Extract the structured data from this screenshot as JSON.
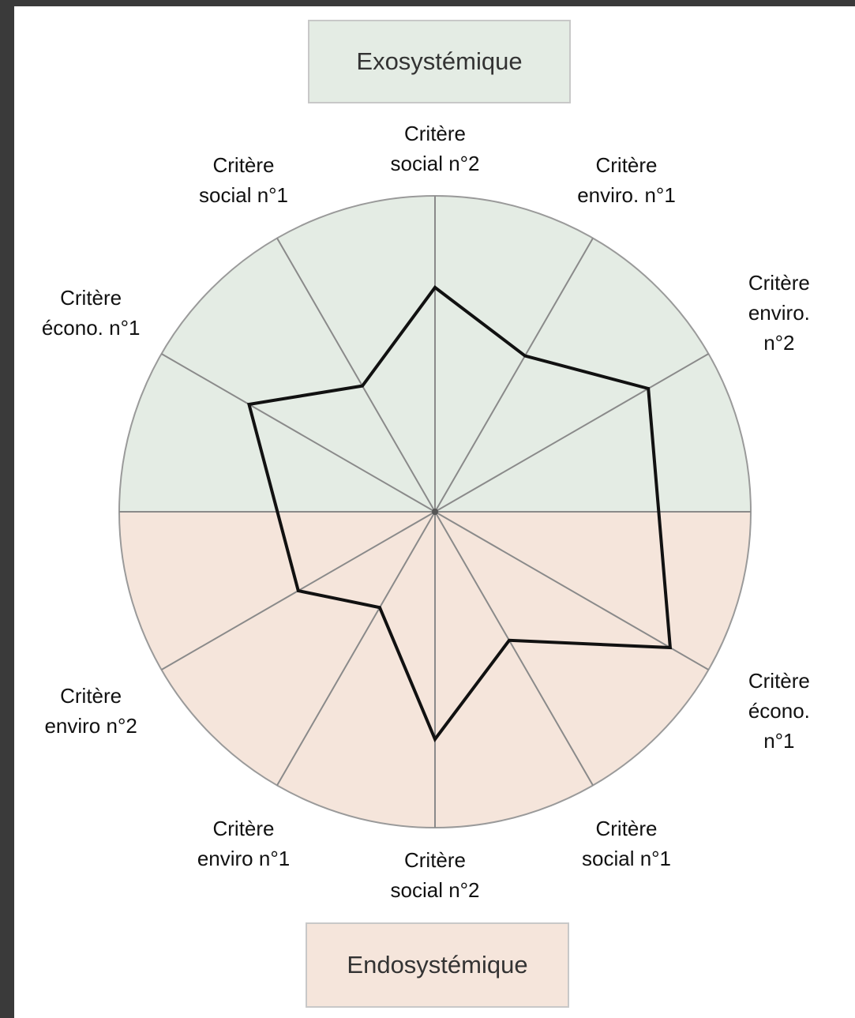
{
  "chart_data": {
    "type": "radar",
    "top_label": "Exosystémique",
    "bottom_label": "Endosystémique",
    "categories": [
      null,
      "Critère\nenviro. n°2",
      "Critère\nenviro. n°1",
      "Critère\nsocial n°2",
      "Critère\nsocial n°1",
      "Critère\nécono. n°1",
      null,
      "Critère\nenviro n°2",
      "Critère\nenviro n°1",
      "Critère\nsocial n°2",
      "Critère\nsocial n°1",
      "Critère\nécono. n°1"
    ],
    "values": [
      null,
      78,
      57,
      71,
      46,
      68,
      null,
      50,
      35,
      72,
      47,
      86
    ],
    "rlim": [
      0,
      100
    ],
    "color": "#111111",
    "top_fill": "#e4ece4",
    "bottom_fill": "#f5e5db"
  }
}
